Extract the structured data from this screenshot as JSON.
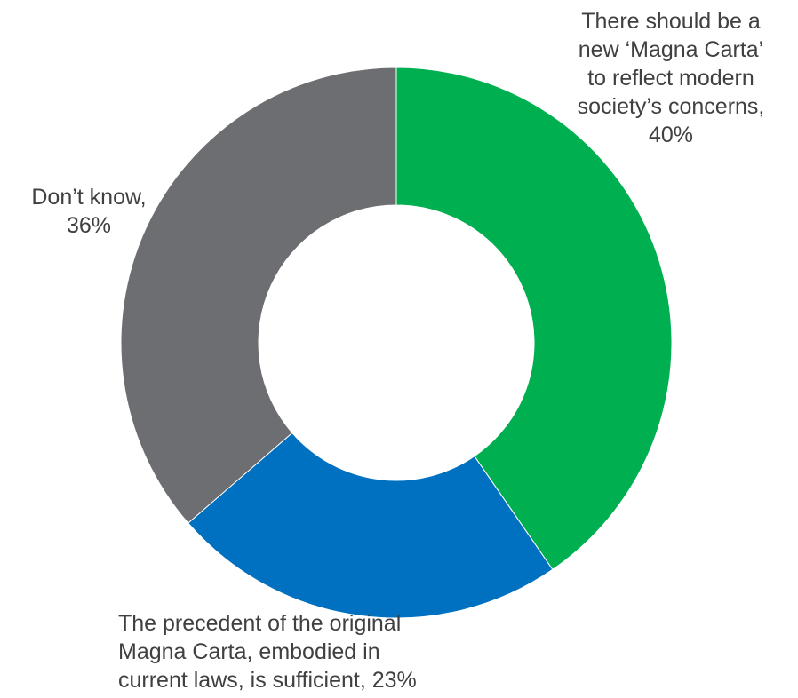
{
  "chart_data": {
    "type": "donut",
    "title": "",
    "legend": "none",
    "series": [
      {
        "values": [
          40,
          23,
          36
        ],
        "colors": [
          "#00b050",
          "#0070c0",
          "#6d6e71"
        ]
      }
    ],
    "categories": [
      "There should be a new ‘Magna Carta’ to reflect modern society’s concerns",
      "The precedent of the original Magna Carta, embodied in current laws, is sufficient",
      "Don’t know"
    ],
    "labels": [
      [
        "There should be a",
        "new ‘Magna Carta’",
        "to reflect modern",
        "society’s concerns,",
        "40%"
      ],
      [
        "The precedent of the original",
        "Magna Carta, embodied in",
        "current laws, is sufficient, 23%"
      ],
      [
        "Don’t know,",
        "36%"
      ]
    ]
  }
}
